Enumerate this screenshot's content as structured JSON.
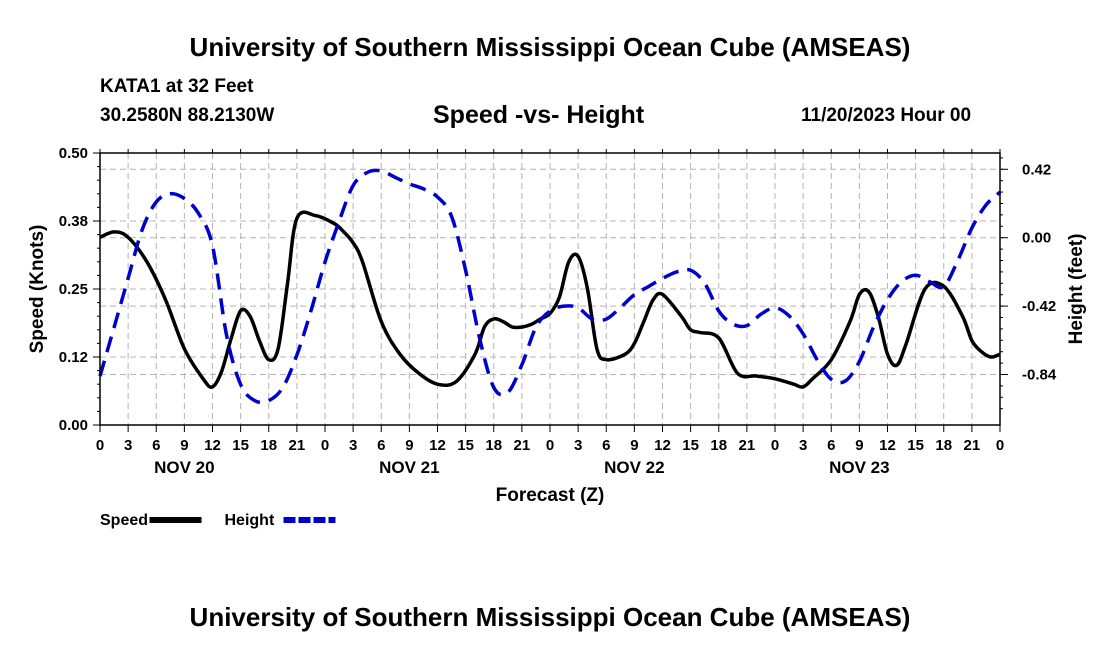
{
  "header": {
    "title": "University of Southern Mississippi Ocean Cube (AMSEAS)",
    "station": "KATA1 at 32 Feet",
    "coords": "30.2580N  88.2130W",
    "subtitle": "Speed -vs- Height",
    "datetime": "11/20/2023 Hour 00"
  },
  "footer": {
    "title": "University of Southern Mississippi Ocean Cube (AMSEAS)"
  },
  "chart_data": {
    "type": "line",
    "title": "Speed -vs- Height",
    "xlabel": "Forecast (Z)",
    "ylabel": "Speed (Knots)",
    "ylabel_right": "Height (feet)",
    "xlim": [
      0,
      96
    ],
    "ylim": [
      0,
      0.5
    ],
    "ylim_right": [
      -1.15,
      0.52
    ],
    "x_ticks": [
      0,
      3,
      6,
      9,
      12,
      15,
      18,
      21,
      24,
      27,
      30,
      33,
      36,
      39,
      42,
      45,
      48,
      51,
      54,
      57,
      60,
      63,
      66,
      69,
      72,
      75,
      78,
      81,
      84,
      87,
      90,
      93,
      96
    ],
    "x_tick_labels": [
      "0",
      "3",
      "6",
      "9",
      "12",
      "15",
      "18",
      "21",
      "0",
      "3",
      "6",
      "9",
      "12",
      "15",
      "18",
      "21",
      "0",
      "3",
      "6",
      "9",
      "12",
      "15",
      "18",
      "21",
      "0",
      "3",
      "6",
      "9",
      "12",
      "15",
      "18",
      "21",
      "0"
    ],
    "day_labels": [
      {
        "x": 9,
        "label": "NOV 20"
      },
      {
        "x": 33,
        "label": "NOV 21"
      },
      {
        "x": 57,
        "label": "NOV 22"
      },
      {
        "x": 81,
        "label": "NOV 23"
      }
    ],
    "y_ticks_left": [
      0,
      0.125,
      0.25,
      0.375,
      0.5
    ],
    "y_tick_labels_left": [
      "0.00",
      "0.12",
      "0.25",
      "0.38",
      "0.50"
    ],
    "y_ticks_right": [
      -0.84,
      -0.42,
      0.0,
      0.42
    ],
    "y_tick_labels_right": [
      "-0.84",
      "-0.42",
      "0.00",
      "0.42"
    ],
    "grid": true,
    "legend_position": "bottom-left",
    "series": [
      {
        "name": "Speed",
        "axis": "left",
        "color": "#000000",
        "style": "solid",
        "x": [
          0,
          1.5,
          3,
          5,
          7,
          9,
          11,
          12,
          13,
          14,
          15,
          16,
          17,
          18,
          19,
          20,
          21,
          23,
          25,
          26,
          27,
          28,
          30,
          32,
          34,
          36,
          38,
          40,
          41,
          42,
          43,
          44,
          45,
          46,
          47,
          48,
          49,
          50,
          51,
          52,
          53,
          54,
          56,
          57,
          58,
          59,
          60,
          62,
          63,
          64,
          66,
          68,
          70,
          72,
          74,
          75,
          76,
          78,
          80,
          81,
          82,
          83,
          84,
          85,
          86,
          88,
          90,
          92,
          93,
          94,
          95,
          96
        ],
        "values": [
          0.345,
          0.355,
          0.345,
          0.3,
          0.23,
          0.14,
          0.085,
          0.07,
          0.1,
          0.16,
          0.21,
          0.2,
          0.155,
          0.12,
          0.14,
          0.26,
          0.38,
          0.385,
          0.37,
          0.355,
          0.335,
          0.3,
          0.19,
          0.13,
          0.095,
          0.075,
          0.08,
          0.13,
          0.18,
          0.195,
          0.19,
          0.18,
          0.18,
          0.185,
          0.195,
          0.205,
          0.235,
          0.3,
          0.31,
          0.25,
          0.14,
          0.12,
          0.13,
          0.15,
          0.19,
          0.23,
          0.24,
          0.2,
          0.175,
          0.17,
          0.16,
          0.095,
          0.09,
          0.085,
          0.075,
          0.07,
          0.085,
          0.12,
          0.19,
          0.24,
          0.245,
          0.2,
          0.13,
          0.11,
          0.15,
          0.25,
          0.255,
          0.2,
          0.155,
          0.135,
          0.125,
          0.13
        ]
      },
      {
        "name": "Height",
        "axis": "right",
        "color": "#0000cc",
        "style": "dashed",
        "x": [
          0,
          1.5,
          3,
          4.5,
          6,
          7.5,
          9,
          10.5,
          12,
          13.5,
          15,
          16.5,
          18,
          19.5,
          21,
          22.5,
          24,
          25.5,
          27,
          28.5,
          30,
          31.5,
          33,
          34.5,
          36,
          37.5,
          39,
          40.5,
          42,
          43.5,
          45,
          46.5,
          48,
          49.5,
          51,
          52.5,
          54,
          55.5,
          57,
          58.5,
          60,
          61.5,
          63,
          64.5,
          66,
          67.5,
          69,
          70.5,
          72,
          73.5,
          75,
          76.5,
          78,
          79.5,
          81,
          82.5,
          84,
          85.5,
          87,
          88.5,
          90,
          91.5,
          93,
          94.5,
          96
        ],
        "values": [
          -0.85,
          -0.55,
          -0.25,
          0.05,
          0.22,
          0.27,
          0.24,
          0.15,
          -0.05,
          -0.6,
          -0.9,
          -1.0,
          -1.0,
          -0.92,
          -0.72,
          -0.45,
          -0.15,
          0.1,
          0.32,
          0.4,
          0.41,
          0.37,
          0.33,
          0.3,
          0.25,
          0.13,
          -0.2,
          -0.62,
          -0.92,
          -0.95,
          -0.78,
          -0.55,
          -0.45,
          -0.42,
          -0.43,
          -0.5,
          -0.5,
          -0.43,
          -0.35,
          -0.3,
          -0.25,
          -0.21,
          -0.2,
          -0.28,
          -0.45,
          -0.53,
          -0.54,
          -0.47,
          -0.43,
          -0.48,
          -0.59,
          -0.75,
          -0.87,
          -0.88,
          -0.76,
          -0.55,
          -0.38,
          -0.27,
          -0.23,
          -0.27,
          -0.3,
          -0.14,
          0.06,
          0.2,
          0.28
        ]
      }
    ]
  }
}
